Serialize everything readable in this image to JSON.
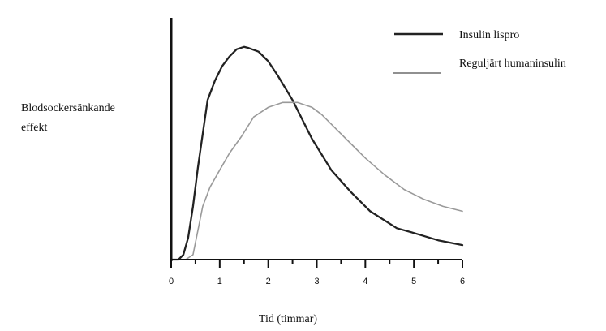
{
  "chart_data": {
    "type": "line",
    "title": "",
    "xlabel": "Tid (timmar)",
    "ylabel": "Blodsockersänkande effekt",
    "ylabel_lines": [
      "Blodsockersänkande",
      "effekt"
    ],
    "xlim": [
      0,
      6
    ],
    "ylim": [
      0,
      1
    ],
    "xticks": [
      0,
      1,
      2,
      3,
      4,
      5,
      6
    ],
    "xtick_labels": [
      "0",
      "1",
      "2",
      "3",
      "4",
      "5",
      "6"
    ],
    "grid": false,
    "legend_position": "top-right",
    "series": [
      {
        "name": "Insulin lispro",
        "color": "#222222",
        "x": [
          0,
          0.15,
          0.25,
          0.35,
          0.45,
          0.55,
          0.65,
          0.75,
          0.9,
          1.05,
          1.2,
          1.35,
          1.5,
          1.6,
          1.8,
          2.0,
          2.2,
          2.5,
          2.9,
          3.3,
          3.7,
          4.1,
          4.65,
          5.0,
          5.5,
          6.0
        ],
        "y": [
          0,
          0,
          0.02,
          0.09,
          0.22,
          0.38,
          0.52,
          0.66,
          0.74,
          0.8,
          0.84,
          0.87,
          0.88,
          0.875,
          0.86,
          0.82,
          0.76,
          0.66,
          0.5,
          0.37,
          0.28,
          0.2,
          0.13,
          0.11,
          0.08,
          0.06
        ]
      },
      {
        "name": "Reguljärt humaninsulin",
        "color": "#9a9a9a",
        "x": [
          0,
          0.3,
          0.45,
          0.55,
          0.65,
          0.8,
          1.0,
          1.2,
          1.45,
          1.7,
          2.0,
          2.3,
          2.6,
          2.9,
          3.1,
          3.4,
          3.7,
          4.0,
          4.4,
          4.8,
          5.2,
          5.6,
          6.0
        ],
        "y": [
          0,
          0,
          0.02,
          0.12,
          0.22,
          0.3,
          0.37,
          0.44,
          0.51,
          0.59,
          0.63,
          0.65,
          0.65,
          0.63,
          0.6,
          0.54,
          0.48,
          0.42,
          0.35,
          0.29,
          0.25,
          0.22,
          0.2
        ]
      }
    ]
  }
}
